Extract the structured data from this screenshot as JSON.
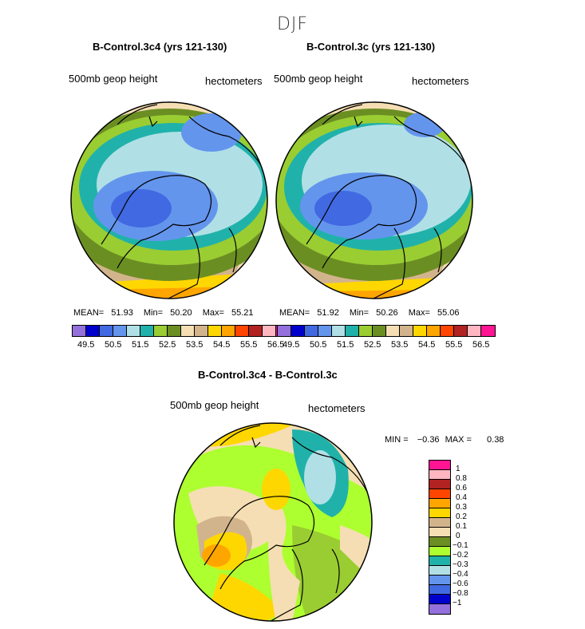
{
  "figure_title": "DJF",
  "panels": [
    {
      "title": "B-Control.3c4 (yrs 121-130)",
      "left_label": "500mb geop height",
      "right_label": "hectometers",
      "stats": {
        "mean_label": "MEAN=",
        "mean": "51.93",
        "min_label": "Min=",
        "min": "50.20",
        "max_label": "Max=",
        "max": "55.21"
      }
    },
    {
      "title": "B-Control.3c (yrs 121-130)",
      "left_label": "500mb geop height",
      "right_label": "hectometers",
      "stats": {
        "mean_label": "MEAN=",
        "mean": "51.92",
        "min_label": "Min=",
        "min": "50.26",
        "max_label": "Max=",
        "max": "55.06"
      }
    },
    {
      "title": "B-Control.3c4 - B-Control.3c",
      "left_label": "500mb geop height",
      "right_label": "hectometers",
      "stats": {
        "min_label": "MIN =",
        "min": "−0.36",
        "max_label": "MAX =",
        "max": "0.38"
      }
    }
  ],
  "colorbar_horizontal": {
    "colors": [
      "#9370db",
      "#0000cd",
      "#4169e1",
      "#6495ed",
      "#b0e0e6",
      "#20b2aa",
      "#9acd32",
      "#6b8e23",
      "#f5deb3",
      "#d2b48c",
      "#ffd700",
      "#ffa500",
      "#ff4500",
      "#b22222",
      "#ffb6c1",
      "#ff1493"
    ],
    "labels": [
      "49.5",
      "50.5",
      "51.5",
      "52.5",
      "53.5",
      "54.5",
      "55.5",
      "56.5"
    ]
  },
  "colorbar_vertical": {
    "colors": [
      "#ff1493",
      "#ffb6c1",
      "#b22222",
      "#ff4500",
      "#ffa500",
      "#ffd700",
      "#d2b48c",
      "#f5deb3",
      "#6b8e23",
      "#adff2f",
      "#20b2aa",
      "#b0e0e6",
      "#6495ed",
      "#4169e1",
      "#0000cd",
      "#9370db"
    ],
    "labels": [
      "1",
      "0.8",
      "0.6",
      "0.4",
      "0.3",
      "0.2",
      "0.1",
      "0",
      "−0.1",
      "−0.2",
      "−0.3",
      "−0.4",
      "−0.6",
      "−0.8",
      "−1"
    ]
  }
}
